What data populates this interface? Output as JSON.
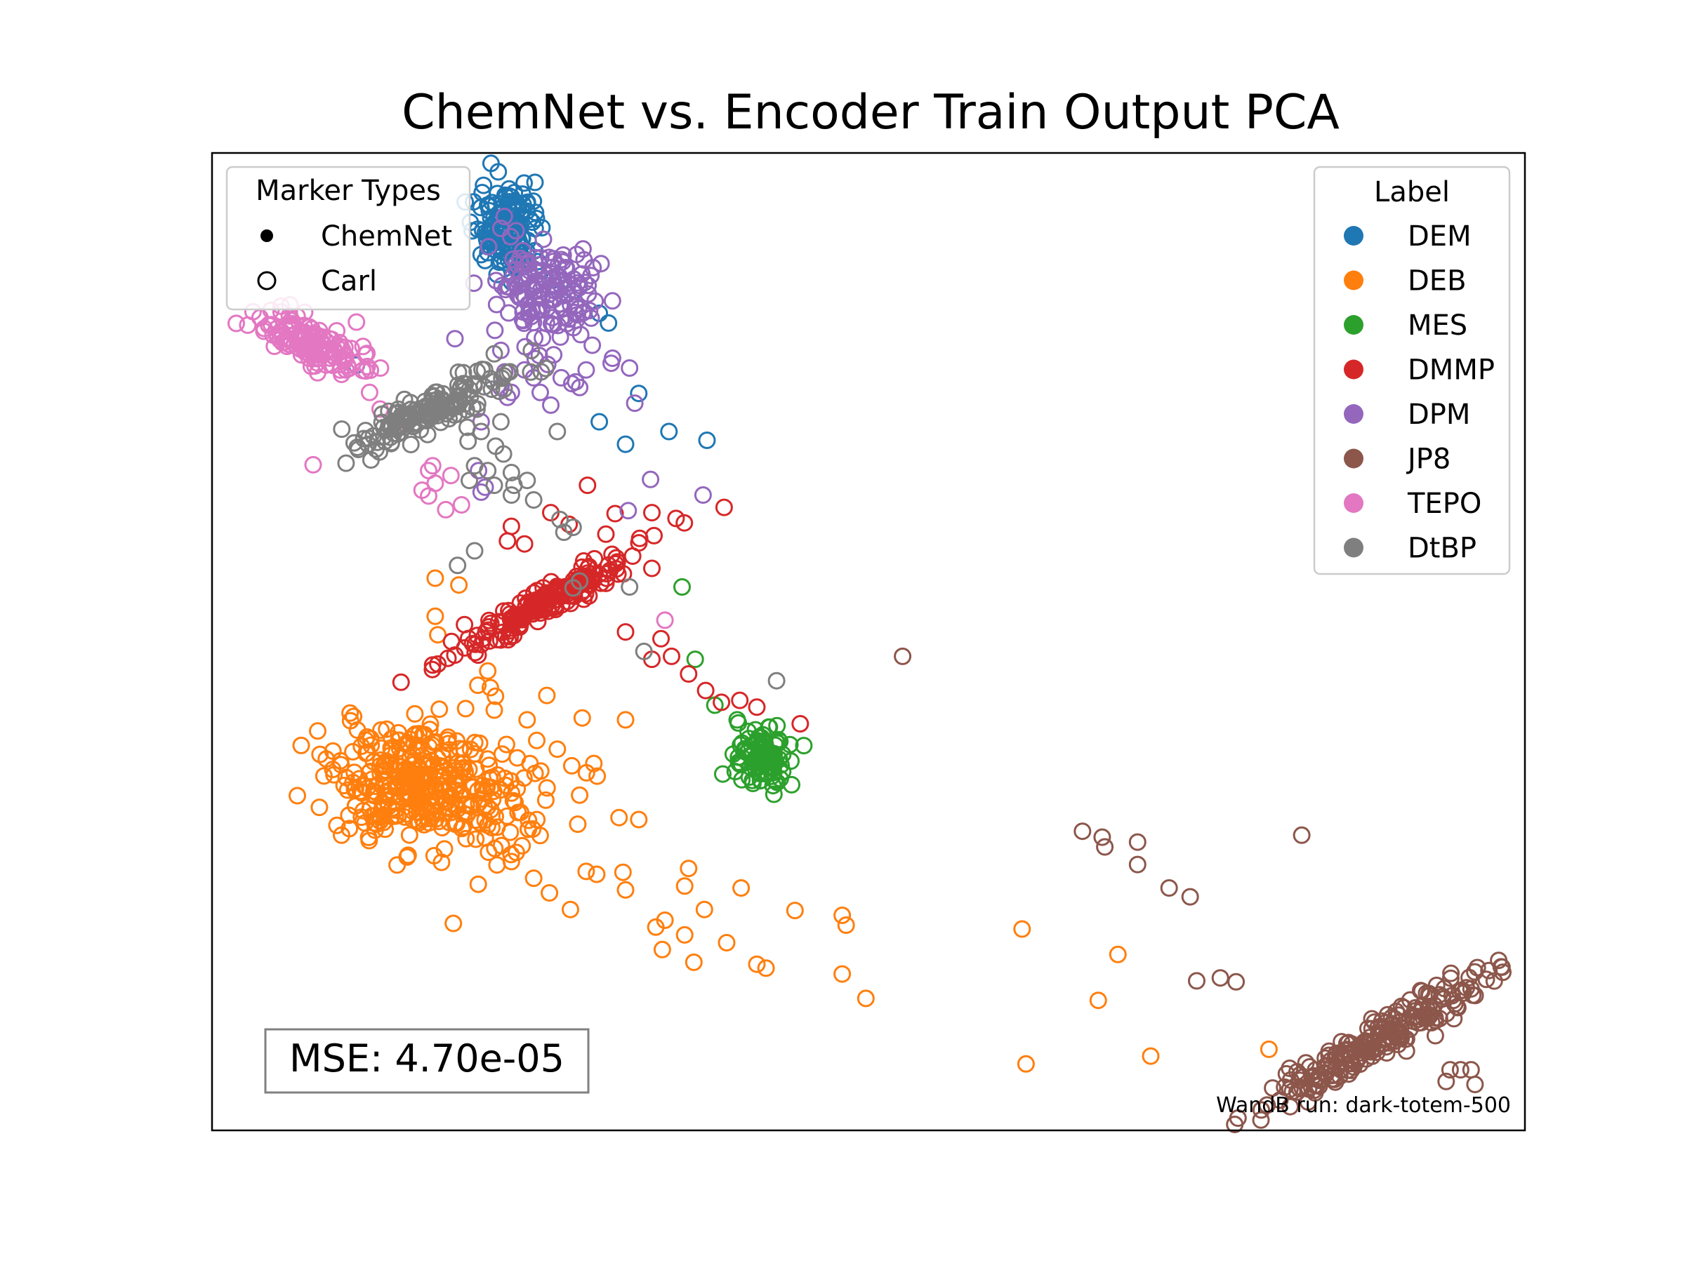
{
  "chart_data": {
    "type": "scatter",
    "title": "ChemNet vs. Encoder Train Output PCA",
    "xlabel": "",
    "ylabel": "",
    "axes_visible": false,
    "grid": false,
    "xlim": [
      0,
      100
    ],
    "ylim": [
      0,
      100
    ],
    "marker_legend": {
      "title": "Marker Types",
      "placement": "top-left",
      "entries": [
        {
          "label": "ChemNet",
          "marker": "filled"
        },
        {
          "label": "Carl",
          "marker": "hollow"
        }
      ]
    },
    "label_legend": {
      "title": "Label",
      "placement": "top-right",
      "entries": [
        "DEM",
        "DEB",
        "MES",
        "DMMP",
        "DPM",
        "JP8",
        "TEPO",
        "DtBP"
      ]
    },
    "annotation": "MSE: 4.70e-05",
    "footnote": "WandB run: dark-totem-500",
    "series": [
      {
        "name": "DEM",
        "color": "#1f77b4",
        "clusters": [
          {
            "cx": 22.5,
            "cy": 92.5,
            "sx": 1.2,
            "sy": 2.2,
            "rot": 0,
            "n": 140
          }
        ],
        "outliers": [
          [
            21.0,
            89.8
          ],
          [
            20.5,
            89.6
          ],
          [
            27.5,
            85.9
          ],
          [
            29.5,
            83.6
          ],
          [
            30.2,
            82.6
          ],
          [
            11.0,
            78.3
          ],
          [
            32.5,
            75.4
          ],
          [
            29.5,
            72.5
          ],
          [
            37.7,
            70.6
          ],
          [
            31.5,
            70.2
          ],
          [
            34.8,
            71.5
          ],
          [
            22.0,
            89.0
          ],
          [
            24.0,
            89.5
          ],
          [
            26.0,
            87.0
          ]
        ]
      },
      {
        "name": "DEB",
        "color": "#ff7f0e",
        "clusters": [
          {
            "cx": 14.5,
            "cy": 36.0,
            "sx": 3.0,
            "sy": 3.2,
            "rot": 0,
            "n": 260
          },
          {
            "cx": 19.5,
            "cy": 34.0,
            "sx": 3.8,
            "sy": 3.4,
            "rot": 0,
            "n": 120
          }
        ],
        "outliers": [
          [
            17.0,
            56.5
          ],
          [
            18.8,
            55.8
          ],
          [
            17.0,
            52.6
          ],
          [
            17.2,
            50.7
          ],
          [
            21.0,
            47.0
          ],
          [
            21.2,
            45.3
          ],
          [
            25.5,
            44.5
          ],
          [
            28.2,
            42.2
          ],
          [
            21.5,
            43.0
          ],
          [
            24.0,
            42.0
          ],
          [
            31.5,
            42.0
          ],
          [
            8.7,
            38.0
          ],
          [
            26.3,
            39.0
          ],
          [
            27.4,
            37.3
          ],
          [
            28.0,
            34.3
          ],
          [
            31.0,
            32.0
          ],
          [
            32.5,
            31.8
          ],
          [
            28.5,
            26.5
          ],
          [
            29.3,
            26.2
          ],
          [
            31.3,
            26.4
          ],
          [
            31.5,
            24.6
          ],
          [
            36.3,
            26.8
          ],
          [
            36.0,
            25.0
          ],
          [
            37.5,
            22.6
          ],
          [
            34.5,
            21.5
          ],
          [
            33.8,
            20.8
          ],
          [
            40.3,
            24.8
          ],
          [
            44.4,
            22.5
          ],
          [
            48.0,
            22.0
          ],
          [
            48.3,
            21.0
          ],
          [
            36.0,
            20.0
          ],
          [
            34.3,
            18.5
          ],
          [
            36.7,
            17.2
          ],
          [
            39.2,
            19.2
          ],
          [
            41.5,
            17.0
          ],
          [
            42.2,
            16.6
          ],
          [
            48.0,
            16.0
          ],
          [
            61.7,
            20.6
          ],
          [
            69.0,
            18.0
          ],
          [
            67.5,
            13.3
          ],
          [
            49.8,
            13.5
          ],
          [
            62.0,
            6.8
          ],
          [
            71.5,
            7.6
          ],
          [
            80.5,
            8.3
          ],
          [
            27.3,
            22.6
          ],
          [
            25.7,
            24.3
          ],
          [
            24.5,
            25.8
          ],
          [
            22.8,
            27.5
          ]
        ]
      },
      {
        "name": "MES",
        "color": "#2ca02c",
        "clusters": [
          {
            "cx": 41.8,
            "cy": 38.3,
            "sx": 1.0,
            "sy": 1.4,
            "rot": 0,
            "n": 110
          }
        ],
        "outliers": [
          [
            35.8,
            55.6
          ],
          [
            36.8,
            48.2
          ],
          [
            38.3,
            43.5
          ],
          [
            40.0,
            42.0
          ],
          [
            39.7,
            38.5
          ],
          [
            41.2,
            35.5
          ]
        ]
      },
      {
        "name": "DMMP",
        "color": "#d62728",
        "clusters": [
          {
            "cx": 26.0,
            "cy": 54.5,
            "sx": 4.5,
            "sy": 0.75,
            "rot": 38,
            "n": 180
          }
        ],
        "outliers": [
          [
            28.6,
            66.0
          ],
          [
            25.8,
            63.2
          ],
          [
            27.2,
            62.0
          ],
          [
            22.5,
            60.3
          ],
          [
            22.8,
            61.8
          ],
          [
            30.7,
            63.1
          ],
          [
            33.5,
            63.2
          ],
          [
            33.5,
            57.5
          ],
          [
            30.0,
            61.0
          ],
          [
            33.5,
            48.2
          ],
          [
            35.0,
            48.5
          ],
          [
            36.3,
            46.7
          ],
          [
            37.6,
            45.0
          ],
          [
            38.8,
            43.8
          ],
          [
            40.2,
            44.0
          ],
          [
            41.5,
            43.3
          ],
          [
            44.8,
            41.6
          ],
          [
            23.8,
            60.0
          ],
          [
            34.2,
            50.3
          ],
          [
            31.5,
            51.0
          ]
        ]
      },
      {
        "name": "DPM",
        "color": "#9467bd",
        "clusters": [
          {
            "cx": 25.5,
            "cy": 85.6,
            "sx": 1.9,
            "sy": 3.0,
            "rot": 0,
            "n": 150
          }
        ],
        "outliers": [
          [
            18.5,
            81.0
          ],
          [
            22.0,
            79.8
          ],
          [
            22.3,
            77.6
          ],
          [
            22.0,
            76.0
          ],
          [
            24.5,
            77.0
          ],
          [
            26.6,
            77.0
          ],
          [
            27.4,
            76.4
          ],
          [
            23.8,
            77.8
          ],
          [
            22.5,
            75.0
          ],
          [
            25.8,
            74.2
          ],
          [
            28.0,
            76.0
          ],
          [
            28.5,
            77.8
          ],
          [
            31.8,
            78.0
          ],
          [
            30.5,
            79.0
          ],
          [
            32.2,
            74.4
          ],
          [
            20.5,
            72.5
          ],
          [
            33.4,
            66.6
          ],
          [
            37.4,
            65.0
          ],
          [
            20.5,
            65.3
          ],
          [
            20.8,
            65.8
          ],
          [
            31.7,
            63.4
          ],
          [
            22.8,
            75.5
          ],
          [
            25.0,
            75.5
          ],
          [
            20.3,
            67.5
          ]
        ]
      },
      {
        "name": "JP8",
        "color": "#8c564b",
        "clusters": [
          {
            "cx": 88.6,
            "cy": 9.2,
            "sx": 5.5,
            "sy": 0.9,
            "rot": 39,
            "n": 220
          }
        ],
        "outliers": [
          [
            52.6,
            48.5
          ],
          [
            72.9,
            24.8
          ],
          [
            83.0,
            30.2
          ],
          [
            66.3,
            30.6
          ],
          [
            67.8,
            30.0
          ],
          [
            68.0,
            29.0
          ],
          [
            70.5,
            29.5
          ],
          [
            70.5,
            27.2
          ],
          [
            74.5,
            23.9
          ],
          [
            75.0,
            15.3
          ],
          [
            76.8,
            15.6
          ],
          [
            78.0,
            15.2
          ],
          [
            94.3,
            6.2
          ],
          [
            95.1,
            6.2
          ],
          [
            95.9,
            6.2
          ],
          [
            96.2,
            4.7
          ],
          [
            94.0,
            5.0
          ]
        ]
      },
      {
        "name": "TEPO",
        "color": "#e377c2",
        "clusters": [
          {
            "cx": 7.5,
            "cy": 80.5,
            "sx": 2.4,
            "sy": 0.9,
            "rot": -28,
            "n": 140
          }
        ],
        "outliers": [
          [
            9.5,
            81.8
          ],
          [
            11.0,
            82.7
          ],
          [
            11.5,
            80.2
          ],
          [
            12.0,
            75.5
          ],
          [
            12.8,
            73.8
          ],
          [
            14.0,
            72.0
          ],
          [
            16.5,
            67.5
          ],
          [
            16.5,
            64.9
          ],
          [
            17.0,
            66.2
          ],
          [
            16.0,
            65.5
          ],
          [
            19.0,
            64.0
          ],
          [
            7.7,
            68.1
          ],
          [
            34.5,
            52.2
          ],
          [
            17.8,
            63.5
          ],
          [
            16.8,
            68.0
          ],
          [
            18.2,
            67.0
          ]
        ]
      },
      {
        "name": "DtBP",
        "color": "#7f7f7f",
        "clusters": [
          {
            "cx": 16.5,
            "cy": 73.5,
            "sx": 3.5,
            "sy": 0.9,
            "rot": 33,
            "n": 160
          }
        ],
        "outliers": [
          [
            22.0,
            72.5
          ],
          [
            21.6,
            70.0
          ],
          [
            22.2,
            69.2
          ],
          [
            22.8,
            67.3
          ],
          [
            20.0,
            68.0
          ],
          [
            19.6,
            66.5
          ],
          [
            21.5,
            66.0
          ],
          [
            23.0,
            66.0
          ],
          [
            24.0,
            66.5
          ],
          [
            26.3,
            71.5
          ],
          [
            26.5,
            62.5
          ],
          [
            26.8,
            61.2
          ],
          [
            27.5,
            61.7
          ],
          [
            18.7,
            57.8
          ],
          [
            20.0,
            59.3
          ],
          [
            28.0,
            56.2
          ],
          [
            27.5,
            55.5
          ],
          [
            31.8,
            55.6
          ],
          [
            32.9,
            49.0
          ],
          [
            43.0,
            46.0
          ],
          [
            19.5,
            70.5
          ],
          [
            20.5,
            71.5
          ],
          [
            21.0,
            67.5
          ],
          [
            22.8,
            65.0
          ],
          [
            24.5,
            64.5
          ]
        ]
      }
    ]
  }
}
